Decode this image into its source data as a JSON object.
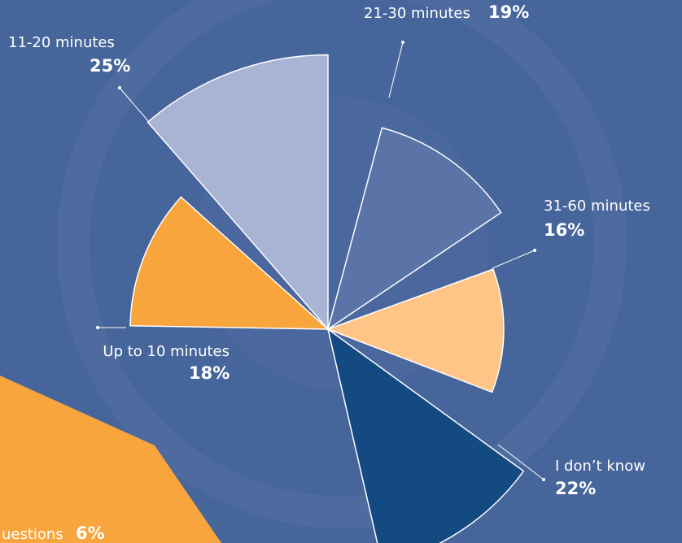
{
  "chart_data": {
    "type": "polar-pie",
    "categories": [
      "11-20 minutes",
      "21-30 minutes",
      "31-60 minutes",
      "I don’t know",
      "Up to 10 minutes",
      "uestions"
    ],
    "values": [
      25,
      19,
      16,
      22,
      18,
      6
    ],
    "value_labels": [
      "25%",
      "19%",
      "16%",
      "22%",
      "18%",
      "6%"
    ],
    "colors": [
      "#a9b3d4",
      "#5a74a7",
      "#fec586",
      "#144a82",
      "#f9a53e",
      "#f9a53e"
    ]
  }
}
